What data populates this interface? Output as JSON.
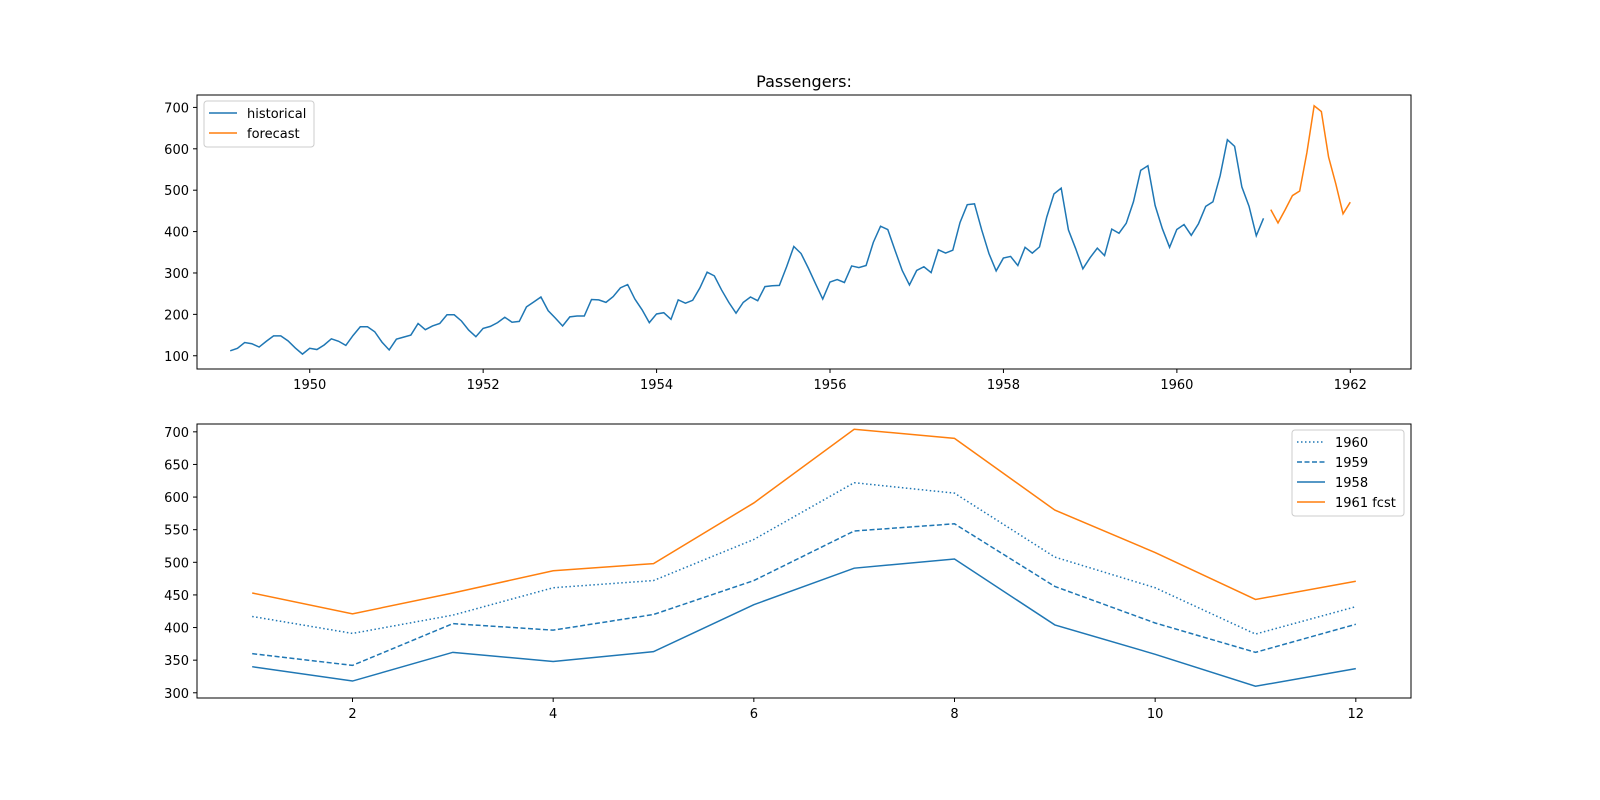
{
  "chart_data": [
    {
      "type": "line",
      "title": "Passengers:",
      "xlabel": "",
      "ylabel": "",
      "x_unit": "year",
      "xlim": [
        1948.7,
        1962.7
      ],
      "ylim": [
        68,
        730
      ],
      "xticks": [
        1950,
        1952,
        1954,
        1956,
        1958,
        1960,
        1962
      ],
      "yticks": [
        100,
        200,
        300,
        400,
        500,
        600,
        700
      ],
      "legend_position": "upper left",
      "grid": false,
      "series": [
        {
          "name": "historical",
          "color": "#1f77b4",
          "style": "solid",
          "x_start": 1949.083,
          "step": 0.08333,
          "values": [
            112,
            118,
            132,
            129,
            121,
            135,
            148,
            148,
            136,
            119,
            104,
            118,
            115,
            126,
            141,
            135,
            125,
            149,
            170,
            170,
            158,
            133,
            114,
            140,
            145,
            150,
            178,
            163,
            172,
            178,
            199,
            199,
            184,
            162,
            146,
            166,
            171,
            180,
            193,
            181,
            183,
            218,
            230,
            242,
            209,
            191,
            172,
            194,
            196,
            196,
            236,
            235,
            229,
            243,
            264,
            272,
            237,
            211,
            180,
            201,
            204,
            188,
            235,
            227,
            234,
            264,
            302,
            293,
            259,
            229,
            203,
            229,
            242,
            233,
            267,
            269,
            270,
            315,
            364,
            347,
            312,
            274,
            237,
            278,
            284,
            277,
            317,
            313,
            318,
            374,
            413,
            405,
            355,
            306,
            271,
            306,
            315,
            301,
            356,
            348,
            355,
            422,
            465,
            467,
            404,
            347,
            305,
            336,
            340,
            318,
            362,
            348,
            363,
            435,
            491,
            505,
            404,
            359,
            310,
            337,
            360,
            342,
            406,
            396,
            420,
            472,
            548,
            559,
            463,
            407,
            362,
            405,
            417,
            391,
            419,
            461,
            472,
            535,
            622,
            606,
            508,
            461,
            390,
            432
          ]
        },
        {
          "name": "forecast",
          "color": "#ff7f0e",
          "style": "solid",
          "x_start": 1961.083,
          "step": 0.08333,
          "values": [
            453,
            421,
            453,
            487,
            498,
            591,
            704,
            690,
            580,
            515,
            443,
            471
          ]
        }
      ]
    },
    {
      "type": "line",
      "title": "",
      "xlabel": "",
      "ylabel": "",
      "xlim": [
        0.45,
        12.55
      ],
      "ylim": [
        292,
        712
      ],
      "xticks": [
        2,
        4,
        6,
        8,
        10,
        12
      ],
      "yticks": [
        300,
        350,
        400,
        450,
        500,
        550,
        600,
        650,
        700
      ],
      "legend_position": "upper right",
      "grid": false,
      "x": [
        1,
        2,
        3,
        4,
        5,
        6,
        7,
        8,
        9,
        10,
        11,
        12
      ],
      "series": [
        {
          "name": "1960",
          "color": "#1f77b4",
          "style": "dotted",
          "values": [
            417,
            391,
            419,
            461,
            472,
            535,
            622,
            606,
            508,
            461,
            390,
            432
          ]
        },
        {
          "name": "1959",
          "color": "#1f77b4",
          "style": "dashed",
          "values": [
            360,
            342,
            406,
            396,
            420,
            472,
            548,
            559,
            463,
            407,
            362,
            405
          ]
        },
        {
          "name": "1958",
          "color": "#1f77b4",
          "style": "solid",
          "values": [
            340,
            318,
            362,
            348,
            363,
            435,
            491,
            505,
            404,
            359,
            310,
            337
          ]
        },
        {
          "name": "1961 fcst",
          "color": "#ff7f0e",
          "style": "solid",
          "values": [
            453,
            421,
            453,
            487,
            498,
            591,
            704,
            690,
            580,
            515,
            443,
            471
          ]
        }
      ]
    }
  ]
}
